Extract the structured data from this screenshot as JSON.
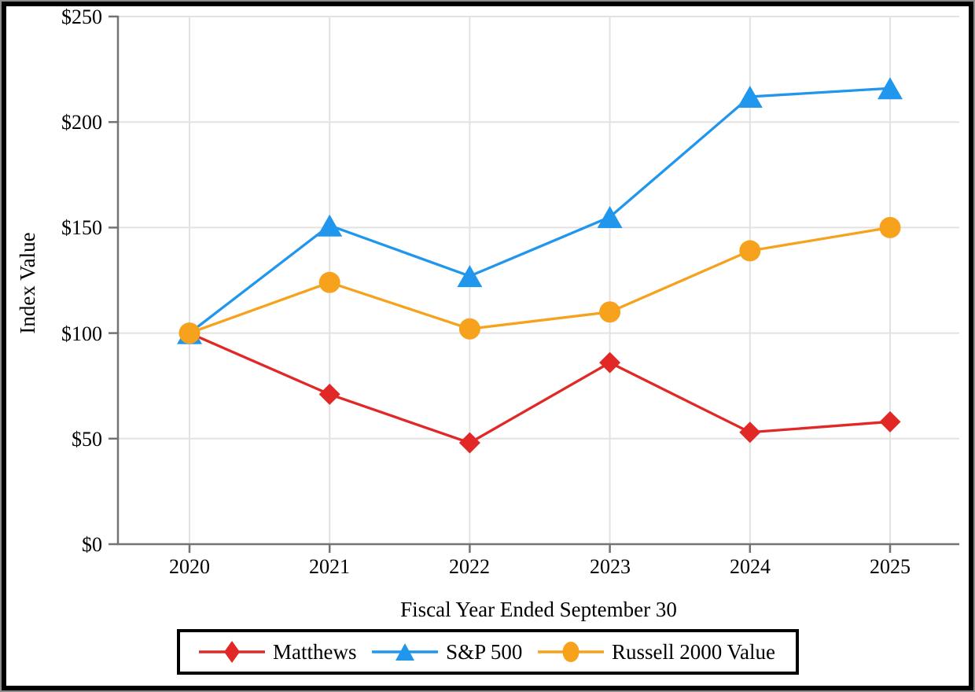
{
  "colors": {
    "background": "#ffffff",
    "frame_border": "#000000",
    "grid": "#e2e2e2",
    "axis": "#737373",
    "text": "#000000",
    "legend_border": "#000000"
  },
  "chart_data": {
    "type": "line",
    "title": "",
    "xlabel": "Fiscal Year Ended September 30",
    "ylabel": "Index Value",
    "categories": [
      "2020",
      "2021",
      "2022",
      "2023",
      "2024",
      "2025"
    ],
    "y_ticks": [
      0,
      50,
      100,
      150,
      200,
      250
    ],
    "y_tick_labels": [
      "$0",
      "$50",
      "$100",
      "$150",
      "$200",
      "$250"
    ],
    "ylim": [
      0,
      250
    ],
    "grid": true,
    "legend_position": "bottom",
    "series": [
      {
        "name": "Matthews",
        "marker": "diamond",
        "color": "#e12826",
        "values": [
          100,
          71,
          48,
          86,
          53,
          58
        ]
      },
      {
        "name": "S&P 500",
        "marker": "triangle",
        "color": "#2196ed",
        "values": [
          100,
          151,
          127,
          155,
          212,
          216
        ]
      },
      {
        "name": "Russell 2000 Value",
        "marker": "circle",
        "color": "#f6a21c",
        "values": [
          100,
          124,
          102,
          110,
          139,
          150
        ]
      }
    ]
  }
}
